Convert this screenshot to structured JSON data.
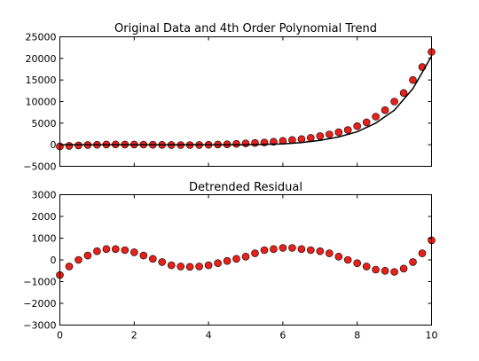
{
  "colors": {
    "marker_fill": "#e8201a",
    "marker_edge": "#000000",
    "line": "#000000"
  },
  "chart_data": [
    {
      "type": "scatter",
      "title": "Original Data and 4th Order Polynomial Trend",
      "xlabel": "",
      "ylabel": "",
      "xlim": [
        0,
        10
      ],
      "ylim": [
        -5000,
        25000
      ],
      "x_ticks": [
        0,
        2,
        4,
        6,
        8,
        10
      ],
      "x_tick_labels_visible": false,
      "y_ticks": [
        -5000,
        0,
        5000,
        10000,
        15000,
        20000,
        25000
      ],
      "y_tick_labels": [
        "−5000",
        "0",
        "5000",
        "10000",
        "15000",
        "20000",
        "25000"
      ],
      "grid": false,
      "series": [
        {
          "kind": "scatter",
          "x": [
            0.0,
            0.25,
            0.5,
            0.75,
            1.0,
            1.25,
            1.5,
            1.75,
            2.0,
            2.25,
            2.5,
            2.75,
            3.0,
            3.25,
            3.5,
            3.75,
            4.0,
            4.25,
            4.5,
            4.75,
            5.0,
            5.25,
            5.5,
            5.75,
            6.0,
            6.25,
            6.5,
            6.75,
            7.0,
            7.25,
            7.5,
            7.75,
            8.0,
            8.25,
            8.5,
            8.75,
            9.0,
            9.25,
            9.5,
            9.75,
            10.0
          ],
          "y": [
            -400,
            -250,
            -150,
            -50,
            0,
            50,
            80,
            60,
            50,
            30,
            0,
            -30,
            -50,
            -60,
            -70,
            -40,
            0,
            50,
            100,
            200,
            300,
            400,
            500,
            700,
            900,
            1100,
            1300,
            1600,
            2000,
            2400,
            2900,
            3400,
            4300,
            5200,
            6500,
            8000,
            10000,
            12000,
            15000,
            18000,
            21500
          ]
        },
        {
          "kind": "line",
          "x": [
            0,
            1,
            2,
            3,
            4,
            5,
            6,
            6.5,
            7,
            7.5,
            8,
            8.5,
            9,
            9.5,
            10
          ],
          "y": [
            0,
            0,
            0,
            0,
            0,
            0,
            200,
            500,
            1000,
            1800,
            3000,
            5000,
            8000,
            13000,
            20500
          ]
        }
      ]
    },
    {
      "type": "scatter",
      "title": "Detrended Residual",
      "xlabel": "",
      "ylabel": "",
      "xlim": [
        0,
        10
      ],
      "ylim": [
        -3000,
        3000
      ],
      "x_ticks": [
        0,
        2,
        4,
        6,
        8,
        10
      ],
      "x_tick_labels": [
        "0",
        "2",
        "4",
        "6",
        "8",
        "10"
      ],
      "y_ticks": [
        -3000,
        -2000,
        -1000,
        0,
        1000,
        2000,
        3000
      ],
      "y_tick_labels": [
        "−3000",
        "−2000",
        "−1000",
        "0",
        "1000",
        "2000",
        "3000"
      ],
      "grid": false,
      "series": [
        {
          "kind": "scatter",
          "x": [
            0.0,
            0.25,
            0.5,
            0.75,
            1.0,
            1.25,
            1.5,
            1.75,
            2.0,
            2.25,
            2.5,
            2.75,
            3.0,
            3.25,
            3.5,
            3.75,
            4.0,
            4.25,
            4.5,
            4.75,
            5.0,
            5.25,
            5.5,
            5.75,
            6.0,
            6.25,
            6.5,
            6.75,
            7.0,
            7.25,
            7.5,
            7.75,
            8.0,
            8.25,
            8.5,
            8.75,
            9.0,
            9.25,
            9.5,
            9.75,
            10.0
          ],
          "y": [
            -700,
            -300,
            0,
            200,
            400,
            500,
            500,
            450,
            350,
            200,
            50,
            -100,
            -250,
            -300,
            -320,
            -300,
            -250,
            -150,
            -50,
            50,
            150,
            300,
            450,
            500,
            550,
            550,
            500,
            450,
            400,
            300,
            150,
            0,
            -150,
            -300,
            -450,
            -500,
            -550,
            -400,
            -100,
            300,
            900
          ]
        }
      ]
    }
  ]
}
